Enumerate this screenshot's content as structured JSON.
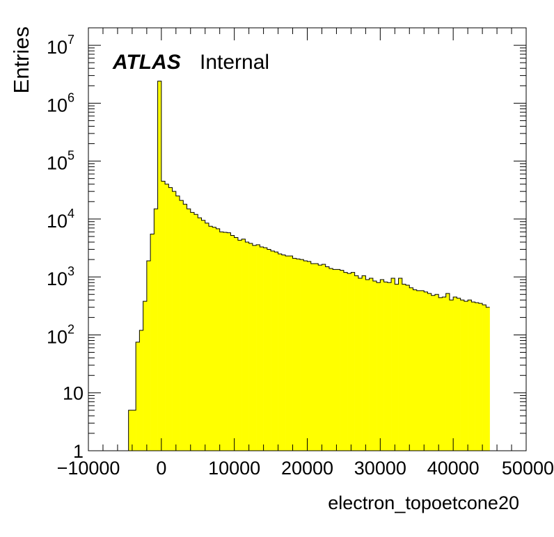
{
  "chart_data": {
    "type": "histogram",
    "xlabel": "electron_topoetcone20",
    "ylabel": "Entries",
    "xlim": [
      -10000,
      50000
    ],
    "ylim": [
      1,
      20000000
    ],
    "y_scale": "log",
    "fill_color": "#ffff00",
    "line_color": "#000000",
    "x_tick_labels": [
      "−10000",
      "0",
      "10000",
      "20000",
      "30000",
      "40000",
      "50000"
    ],
    "x_tick_values": [
      -10000,
      0,
      10000,
      20000,
      30000,
      40000,
      50000
    ],
    "y_tick_labels": [
      {
        "value": 1,
        "base": "1",
        "exp": ""
      },
      {
        "value": 10,
        "base": "10",
        "exp": ""
      },
      {
        "value": 100,
        "base": "10",
        "exp": "2"
      },
      {
        "value": 1000,
        "base": "10",
        "exp": "3"
      },
      {
        "value": 10000,
        "base": "10",
        "exp": "4"
      },
      {
        "value": 100000,
        "base": "10",
        "exp": "5"
      },
      {
        "value": 1000000,
        "base": "10",
        "exp": "6"
      },
      {
        "value": 10000000,
        "base": "10",
        "exp": "7"
      }
    ],
    "bin_width": 500,
    "bins_start": -10000,
    "values": [
      0,
      0,
      0,
      0,
      0,
      0,
      0,
      0,
      0,
      0,
      0,
      5,
      5,
      75,
      120,
      380,
      1900,
      5500,
      15000,
      2400000,
      45000,
      40000,
      35000,
      30000,
      25000,
      21000,
      18000,
      15000,
      13000,
      12000,
      10500,
      9500,
      8500,
      7500,
      7200,
      6800,
      6000,
      5900,
      5800,
      5200,
      4800,
      4300,
      4500,
      4000,
      3800,
      3500,
      3600,
      3300,
      3200,
      3000,
      2800,
      2700,
      2500,
      2400,
      2300,
      2300,
      2100,
      2050,
      2000,
      1900,
      1850,
      1700,
      1700,
      1600,
      1650,
      1500,
      1400,
      1350,
      1350,
      1300,
      1200,
      1150,
      1200,
      1050,
      950,
      1050,
      900,
      950,
      850,
      800,
      900,
      820,
      800,
      950,
      750,
      950,
      750,
      720,
      650,
      600,
      580,
      580,
      550,
      520,
      480,
      500,
      440,
      450,
      520,
      400,
      450,
      430,
      400,
      380,
      400,
      370,
      360,
      350,
      330,
      300
    ]
  },
  "labels": {
    "atlas": "ATLAS",
    "internal": "Internal"
  }
}
